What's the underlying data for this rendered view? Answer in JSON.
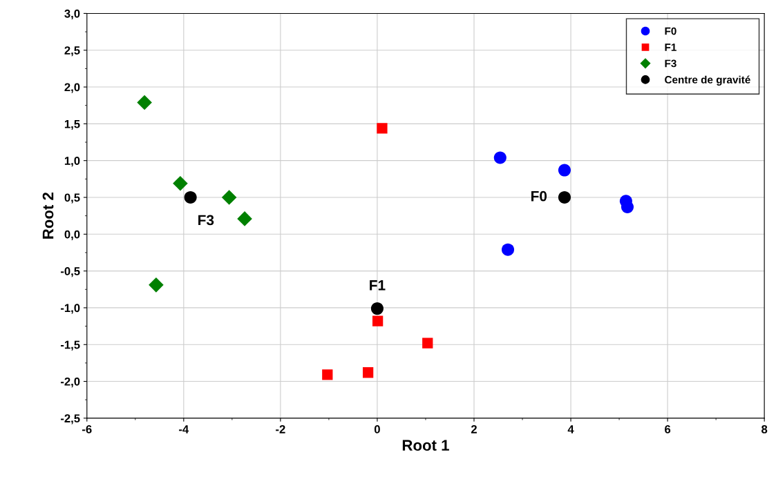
{
  "chart_data": {
    "type": "scatter",
    "xlabel": "Root 1",
    "ylabel": "Root 2",
    "series": [
      {
        "name": "F0",
        "color": "#0000ff",
        "marker": "circle",
        "x": [
          2.54,
          3.87,
          5.14,
          5.17,
          2.7
        ],
        "values": [
          1.04,
          0.87,
          0.45,
          0.37,
          -0.21
        ]
      },
      {
        "name": "F1",
        "color": "#ff0000",
        "marker": "square",
        "x": [
          0.1,
          0.01,
          1.04,
          -0.19,
          -1.03
        ],
        "values": [
          1.44,
          -1.18,
          -1.48,
          -1.88,
          -1.91
        ]
      },
      {
        "name": "F3",
        "color": "#008000",
        "marker": "diamond",
        "x": [
          -4.81,
          -4.07,
          -3.06,
          -2.74,
          -4.57
        ],
        "values": [
          1.79,
          0.69,
          0.5,
          0.21,
          -0.69
        ]
      },
      {
        "name": "Centre de gravité",
        "color": "#000000",
        "marker": "circle",
        "x": [
          3.87,
          0.0,
          -3.86
        ],
        "values": [
          0.5,
          -1.01,
          0.5
        ]
      }
    ],
    "annotations": [
      {
        "text": "F0",
        "x": 3.87,
        "y": 0.5
      },
      {
        "text": "F1",
        "x": 0.0,
        "y": -1.01
      },
      {
        "text": "F3",
        "x": -3.86,
        "y": 0.5
      }
    ],
    "xlim": [
      -6,
      8
    ],
    "xticks": [
      -6,
      -4,
      -2,
      0,
      2,
      4,
      6,
      8
    ],
    "ylim": [
      -2.5,
      3.0
    ],
    "yticks": [
      {
        "value": -2.5,
        "label": "-2,5"
      },
      {
        "value": -2.0,
        "label": "-2,0"
      },
      {
        "value": -1.5,
        "label": "-1,5"
      },
      {
        "value": -1.0,
        "label": "-1,0"
      },
      {
        "value": -0.5,
        "label": "-0,5"
      },
      {
        "value": 0.0,
        "label": "0,0"
      },
      {
        "value": 0.5,
        "label": "0,5"
      },
      {
        "value": 1.0,
        "label": "1,0"
      },
      {
        "value": 1.5,
        "label": "1,5"
      },
      {
        "value": 2.0,
        "label": "2,0"
      },
      {
        "value": 2.5,
        "label": "2,5"
      },
      {
        "value": 3.0,
        "label": "3,0"
      }
    ],
    "grid": true,
    "legend": "top right"
  }
}
